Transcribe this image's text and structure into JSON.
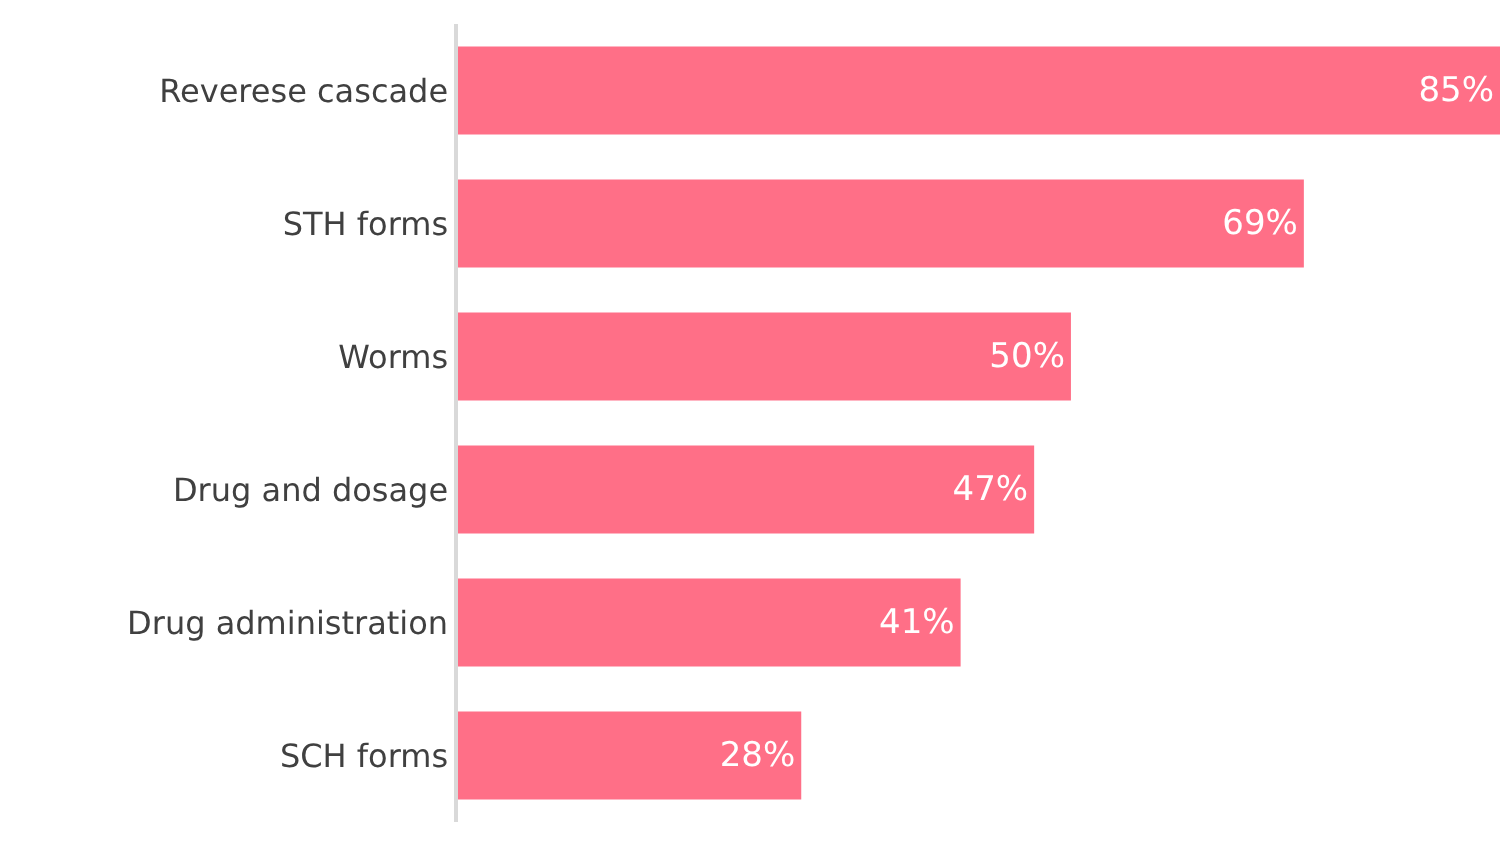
{
  "chart_data": {
    "type": "bar",
    "orientation": "horizontal",
    "categories": [
      "Reverese cascade",
      "STH forms",
      "Worms",
      "Drug and dosage",
      "Drug administration",
      "SCH forms"
    ],
    "values": [
      85,
      69,
      50,
      47,
      41,
      28
    ],
    "value_labels": [
      "85%",
      "69%",
      "50%",
      "47%",
      "41%",
      "28%"
    ],
    "color": "#ff6f87",
    "grid": false
  }
}
